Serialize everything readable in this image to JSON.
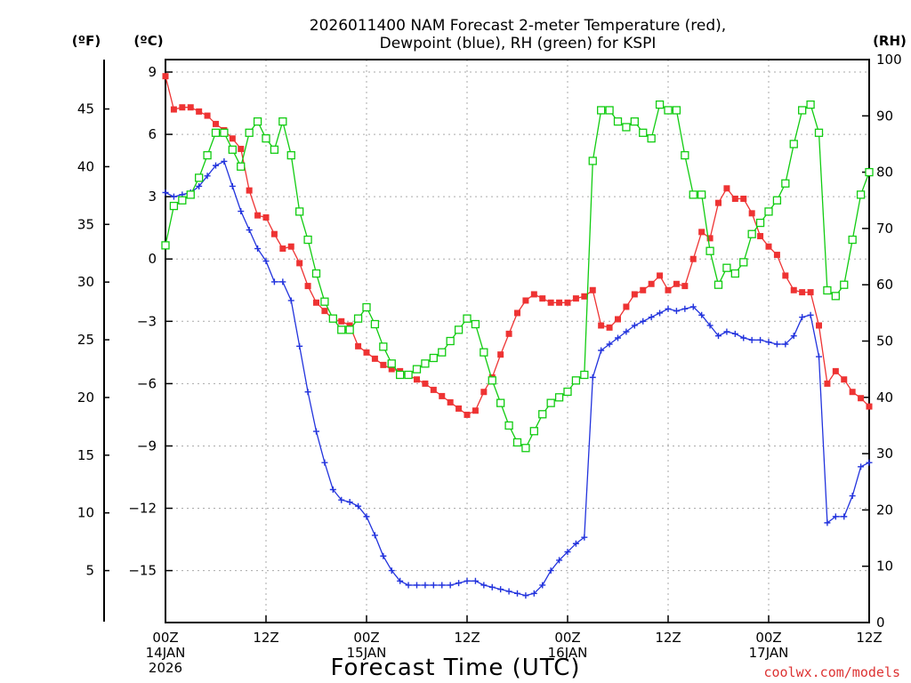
{
  "chart_data": {
    "type": "line",
    "title": [
      "2026011400 NAM Forecast 2-meter Temperature (red),",
      "Dewpoint (blue), RH (green) for KSPI"
    ],
    "xlabel": "Forecast Time (UTC)",
    "units": {
      "left_f": "(ºF)",
      "left_c": "(ºC)",
      "right": "(RH)"
    },
    "credit": "coolwx.com/models",
    "colors": {
      "temperature": "#ee3333",
      "dewpoint": "#2233dd",
      "rh": "#11cc11",
      "grid": "#aaaaaa"
    },
    "x_range_hours": [
      0,
      84
    ],
    "x_ticks": [
      {
        "h": 0,
        "lines": [
          "00Z",
          "14JAN",
          "2026"
        ]
      },
      {
        "h": 12,
        "lines": [
          "12Z"
        ]
      },
      {
        "h": 24,
        "lines": [
          "00Z",
          "15JAN"
        ]
      },
      {
        "h": 36,
        "lines": [
          "12Z"
        ]
      },
      {
        "h": 48,
        "lines": [
          "00Z",
          "16JAN"
        ]
      },
      {
        "h": 60,
        "lines": [
          "12Z"
        ]
      },
      {
        "h": 72,
        "lines": [
          "00Z",
          "17JAN"
        ]
      },
      {
        "h": 84,
        "lines": [
          "12Z"
        ]
      }
    ],
    "y_celsius_range": [
      -17.5,
      9.6
    ],
    "y_celsius_ticks": [
      "9",
      "6",
      "3",
      "0",
      "−3",
      "−6",
      "−9",
      "−12",
      "−15"
    ],
    "y_fahrenheit_ticks": [
      "45",
      "40",
      "35",
      "30",
      "25",
      "20",
      "15",
      "10",
      "5"
    ],
    "y_rh_range": [
      0,
      100
    ],
    "y_rh_ticks": [
      "100",
      "90",
      "80",
      "70",
      "60",
      "50",
      "40",
      "30",
      "20",
      "10",
      "0"
    ],
    "series": [
      {
        "key": "temperature",
        "marker": "filled-square",
        "x": [
          0,
          1,
          2,
          3,
          4,
          5,
          6,
          7,
          8,
          9,
          10,
          11,
          12,
          13,
          14,
          15,
          16,
          17,
          18,
          19,
          20,
          21,
          22,
          23,
          24,
          25,
          26,
          27,
          28,
          29,
          30,
          31,
          32,
          33,
          34,
          35,
          36,
          37,
          38,
          39,
          40,
          41,
          42,
          43,
          44,
          45,
          46,
          47,
          48,
          49,
          50,
          51,
          52,
          53,
          54,
          55,
          56,
          57,
          58,
          59,
          60,
          61,
          62,
          63,
          64,
          65,
          66,
          67,
          68,
          69,
          70,
          71,
          72,
          73,
          74,
          75,
          76,
          77,
          78,
          79,
          80,
          81,
          82,
          83,
          84
        ],
        "values": [
          8.8,
          7.2,
          7.3,
          7.3,
          7.1,
          6.9,
          6.5,
          6.2,
          5.8,
          5.3,
          3.3,
          2.1,
          2.0,
          1.2,
          0.5,
          0.6,
          -0.2,
          -1.3,
          -2.1,
          -2.5,
          -2.9,
          -3.0,
          -3.2,
          -4.2,
          -4.5,
          -4.8,
          -5.1,
          -5.3,
          -5.4,
          -5.6,
          -5.8,
          -6.0,
          -6.3,
          -6.6,
          -6.9,
          -7.2,
          -7.5,
          -7.3,
          -6.4,
          -5.7,
          -4.6,
          -3.6,
          -2.6,
          -2.0,
          -1.7,
          -1.9,
          -2.1,
          -2.1,
          -2.1,
          -1.9,
          -1.8,
          -1.5,
          -3.2,
          -3.3,
          -2.9,
          -2.3,
          -1.7,
          -1.5,
          -1.2,
          -0.8,
          -1.5,
          -1.2,
          -1.3,
          0.0,
          1.3,
          1.0,
          2.7,
          3.4,
          2.9,
          2.9,
          2.2,
          1.1,
          0.6,
          0.2,
          -0.8,
          -1.5,
          -1.6,
          -1.6,
          -3.2,
          -6.0,
          -5.4,
          -5.8,
          -6.4,
          -6.7,
          -7.1
        ]
      },
      {
        "key": "dewpoint",
        "marker": "plus",
        "x": [
          0,
          1,
          2,
          3,
          4,
          5,
          6,
          7,
          8,
          9,
          10,
          11,
          12,
          13,
          14,
          15,
          16,
          17,
          18,
          19,
          20,
          21,
          22,
          23,
          24,
          25,
          26,
          27,
          28,
          29,
          30,
          31,
          32,
          33,
          34,
          35,
          36,
          37,
          38,
          39,
          40,
          41,
          42,
          43,
          44,
          45,
          46,
          47,
          48,
          49,
          50,
          51,
          52,
          53,
          54,
          55,
          56,
          57,
          58,
          59,
          60,
          61,
          62,
          63,
          64,
          65,
          66,
          67,
          68,
          69,
          70,
          71,
          72,
          73,
          74,
          75,
          76,
          77,
          78,
          79,
          80,
          81,
          82,
          83,
          84
        ],
        "values": [
          3.2,
          3.0,
          3.1,
          3.2,
          3.5,
          4.0,
          4.5,
          4.7,
          3.5,
          2.3,
          1.4,
          0.5,
          -0.1,
          -1.1,
          -1.1,
          -2.0,
          -4.2,
          -6.4,
          -8.3,
          -9.8,
          -11.1,
          -11.6,
          -11.7,
          -11.9,
          -12.4,
          -13.3,
          -14.3,
          -15.0,
          -15.5,
          -15.7,
          -15.7,
          -15.7,
          -15.7,
          -15.7,
          -15.7,
          -15.6,
          -15.5,
          -15.5,
          -15.7,
          -15.8,
          -15.9,
          -16.0,
          -16.1,
          -16.2,
          -16.1,
          -15.7,
          -15.0,
          -14.5,
          -14.1,
          -13.7,
          -13.4,
          -5.7,
          -4.4,
          -4.1,
          -3.8,
          -3.5,
          -3.2,
          -3.0,
          -2.8,
          -2.6,
          -2.4,
          -2.5,
          -2.4,
          -2.3,
          -2.7,
          -3.2,
          -3.7,
          -3.5,
          -3.6,
          -3.8,
          -3.9,
          -3.9,
          -4.0,
          -4.1,
          -4.1,
          -3.7,
          -2.8,
          -2.7,
          -4.7,
          -12.7,
          -12.4,
          -12.4,
          -11.4,
          -10.0,
          -9.8
        ]
      },
      {
        "key": "rh",
        "marker": "open-square",
        "x": [
          0,
          1,
          2,
          3,
          4,
          5,
          6,
          7,
          8,
          9,
          10,
          11,
          12,
          13,
          14,
          15,
          16,
          17,
          18,
          19,
          20,
          21,
          22,
          23,
          24,
          25,
          26,
          27,
          28,
          29,
          30,
          31,
          32,
          33,
          34,
          35,
          36,
          37,
          38,
          39,
          40,
          41,
          42,
          43,
          44,
          45,
          46,
          47,
          48,
          49,
          50,
          51,
          52,
          53,
          54,
          55,
          56,
          57,
          58,
          59,
          60,
          61,
          62,
          63,
          64,
          65,
          66,
          67,
          68,
          69,
          70,
          71,
          72,
          73,
          74,
          75,
          76,
          77,
          78,
          79,
          80,
          81,
          82,
          83,
          84
        ],
        "values": [
          67,
          74,
          75,
          76,
          79,
          83,
          87,
          87,
          84,
          81,
          87,
          89,
          86,
          84,
          89,
          83,
          73,
          68,
          62,
          57,
          54,
          52,
          52,
          54,
          56,
          53,
          49,
          46,
          44,
          44,
          45,
          46,
          47,
          48,
          50,
          52,
          54,
          53,
          48,
          43,
          39,
          35,
          32,
          31,
          34,
          37,
          39,
          40,
          41,
          43,
          44,
          82,
          91,
          91,
          89,
          88,
          89,
          87,
          86,
          92,
          91,
          91,
          83,
          76,
          76,
          66,
          60,
          63,
          62,
          64,
          69,
          71,
          73,
          75,
          78,
          85,
          91,
          92,
          87,
          59,
          58,
          60,
          68,
          76,
          80
        ]
      }
    ]
  }
}
